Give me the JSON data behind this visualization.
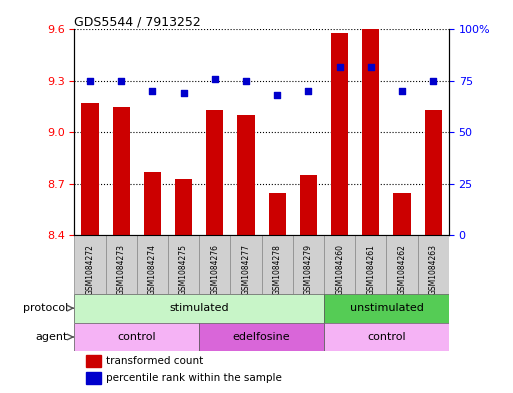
{
  "title": "GDS5544 / 7913252",
  "samples": [
    "GSM1084272",
    "GSM1084273",
    "GSM1084274",
    "GSM1084275",
    "GSM1084276",
    "GSM1084277",
    "GSM1084278",
    "GSM1084279",
    "GSM1084260",
    "GSM1084261",
    "GSM1084262",
    "GSM1084263"
  ],
  "bar_values": [
    9.17,
    9.15,
    8.77,
    8.73,
    9.13,
    9.1,
    8.65,
    8.75,
    9.58,
    9.6,
    8.65,
    9.13
  ],
  "dot_values": [
    75,
    75,
    70,
    69,
    76,
    75,
    68,
    70,
    82,
    82,
    70,
    75
  ],
  "ylim_left": [
    8.4,
    9.6
  ],
  "ylim_right": [
    0,
    100
  ],
  "yticks_left": [
    8.4,
    8.7,
    9.0,
    9.3,
    9.6
  ],
  "yticks_right": [
    0,
    25,
    50,
    75,
    100
  ],
  "bar_color": "#cc0000",
  "dot_color": "#0000cc",
  "protocol_groups": [
    {
      "label": "stimulated",
      "start": 0,
      "end": 8,
      "color": "#c8f5c8"
    },
    {
      "label": "unstimulated",
      "start": 8,
      "end": 12,
      "color": "#55cc55"
    }
  ],
  "agent_groups": [
    {
      "label": "control",
      "start": 0,
      "end": 4,
      "color": "#f5b3f5"
    },
    {
      "label": "edelfosine",
      "start": 4,
      "end": 8,
      "color": "#d966d9"
    },
    {
      "label": "control",
      "start": 8,
      "end": 12,
      "color": "#f5b3f5"
    }
  ],
  "legend_items": [
    {
      "color": "#cc0000",
      "label": "transformed count"
    },
    {
      "color": "#0000cc",
      "label": "percentile rank within the sample"
    }
  ],
  "protocol_label": "protocol",
  "agent_label": "agent",
  "xtick_bg": "#d0d0d0",
  "right_tick_labels": [
    "0",
    "25",
    "50",
    "75",
    "100%"
  ]
}
